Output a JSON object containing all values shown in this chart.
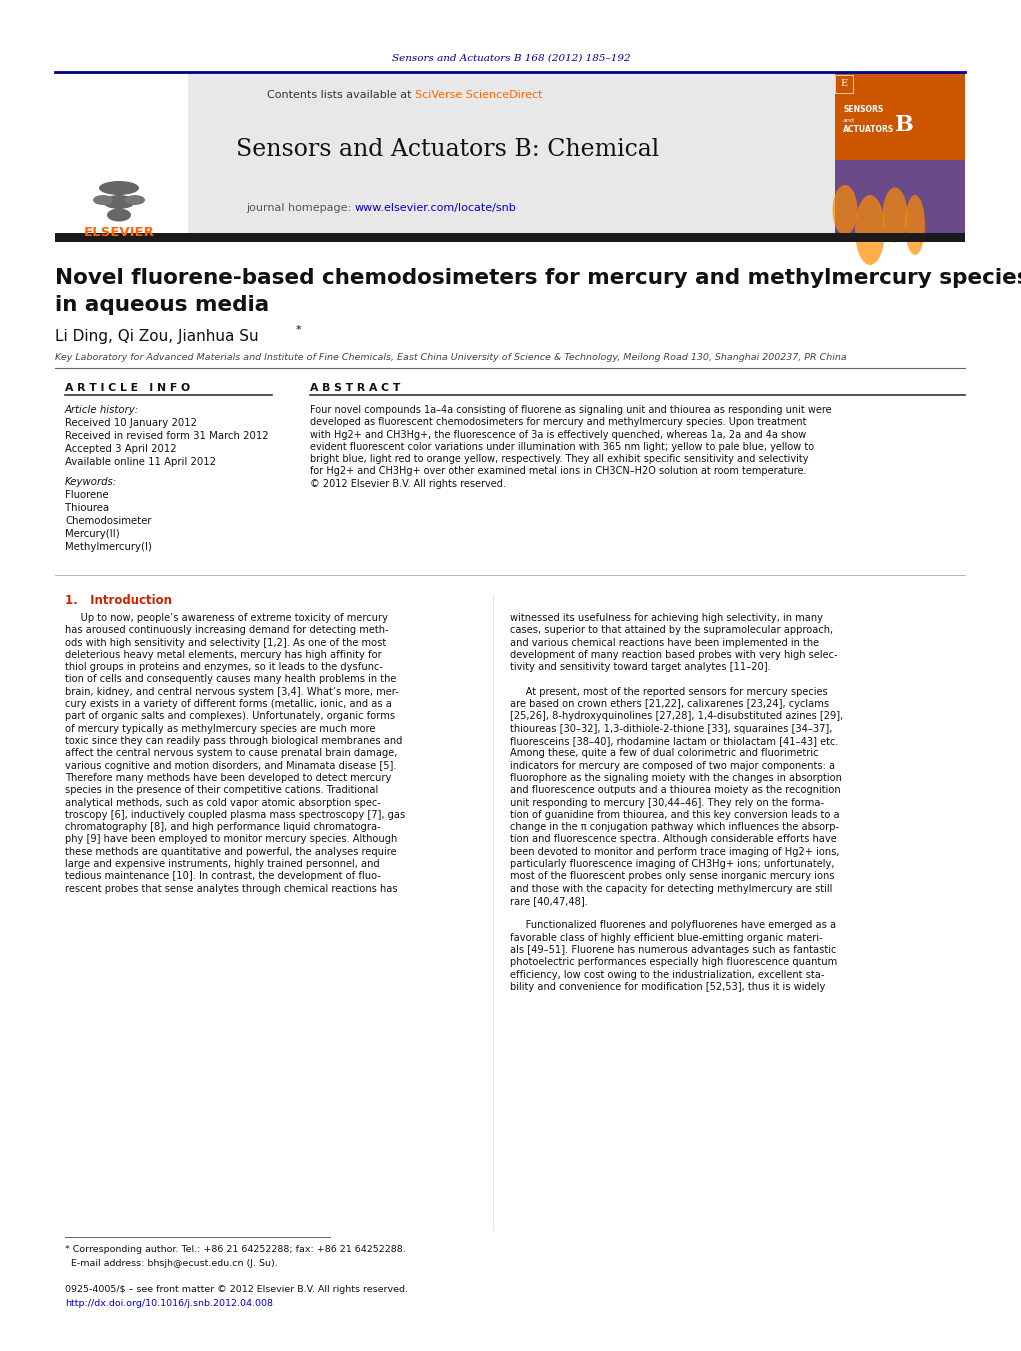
{
  "page_bg": "#ffffff",
  "top_citation": "Sensors and Actuators B 168 (2012) 185–192",
  "top_citation_color": "#00008B",
  "journal_name": "Sensors and Actuators B: Chemical",
  "journal_url": "www.elsevier.com/locate/snb",
  "contents_text": "Contents lists available at ",
  "sciverse_text": "SciVerse ScienceDirect",
  "journal_url_label": "journal homepage: ",
  "header_bg": "#e8e8e8",
  "dark_bar_color": "#1a1a1a",
  "article_title_line1": "Novel fluorene-based chemodosimeters for mercury and methylmercury species",
  "article_title_line2": "in aqueous media",
  "authors": "Li Ding, Qi Zou, Jianhua Su",
  "affiliation": "Key Laboratory for Advanced Materials and Institute of Fine Chemicals, East China University of Science & Technology, Meilong Road 130, Shanghai 200237, PR China",
  "article_info_header": "A R T I C L E   I N F O",
  "abstract_header": "A B S T R A C T",
  "article_history_label": "Article history:",
  "received_label": "Received 10 January 2012",
  "revised_label": "Received in revised form 31 March 2012",
  "accepted_label": "Accepted 3 April 2012",
  "online_label": "Available online 11 April 2012",
  "keywords_label": "Keywords:",
  "keywords": [
    "Fluorene",
    "Thiourea",
    "Chemodosimeter",
    "Mercury(II)",
    "Methylmercury(I)"
  ],
  "abstract_lines": [
    "Four novel compounds 1a–4a consisting of fluorene as signaling unit and thiourea as responding unit were",
    "developed as fluorescent chemodosimeters for mercury and methylmercury species. Upon treatment",
    "with Hg2+ and CH3Hg+, the fluorescence of 3a is effectively quenched, whereas 1a, 2a and 4a show",
    "evident fluorescent color variations under illumination with 365 nm light; yellow to pale blue, yellow to",
    "bright blue, light red to orange yellow, respectively. They all exhibit specific sensitivity and selectivity",
    "for Hg2+ and CH3Hg+ over other examined metal ions in CH3CN–H2O solution at room temperature.",
    "© 2012 Elsevier B.V. All rights reserved."
  ],
  "intro_header": "1.   Introduction",
  "col1_lines": [
    "     Up to now, people’s awareness of extreme toxicity of mercury",
    "has aroused continuously increasing demand for detecting meth-",
    "ods with high sensitivity and selectivity [1,2]. As one of the most",
    "deleterious heavy metal elements, mercury has high affinity for",
    "thiol groups in proteins and enzymes, so it leads to the dysfunc-",
    "tion of cells and consequently causes many health problems in the",
    "brain, kidney, and central nervous system [3,4]. What’s more, mer-",
    "cury exists in a variety of different forms (metallic, ionic, and as a",
    "part of organic salts and complexes). Unfortunately, organic forms",
    "of mercury typically as methylmercury species are much more",
    "toxic since they can readily pass through biological membranes and",
    "affect the central nervous system to cause prenatal brain damage,",
    "various cognitive and motion disorders, and Minamata disease [5].",
    "Therefore many methods have been developed to detect mercury",
    "species in the presence of their competitive cations. Traditional",
    "analytical methods, such as cold vapor atomic absorption spec-",
    "troscopy [6], inductively coupled plasma mass spectroscopy [7], gas",
    "chromatography [8], and high performance liquid chromatogra-",
    "phy [9] have been employed to monitor mercury species. Although",
    "these methods are quantitative and powerful, the analyses require",
    "large and expensive instruments, highly trained personnel, and",
    "tedious maintenance [10]. In contrast, the development of fluo-",
    "rescent probes that sense analytes through chemical reactions has"
  ],
  "col2_lines": [
    "witnessed its usefulness for achieving high selectivity, in many",
    "cases, superior to that attained by the supramolecular approach,",
    "and various chemical reactions have been implemented in the",
    "development of many reaction based probes with very high selec-",
    "tivity and sensitivity toward target analytes [11–20].",
    "",
    "     At present, most of the reported sensors for mercury species",
    "are based on crown ethers [21,22], calixarenes [23,24], cyclams",
    "[25,26], 8-hydroxyquinolines [27,28], 1,4-disubstituted azines [29],",
    "thioureas [30–32], 1,3-dithiole-2-thione [33], squaraines [34–37],",
    "fluoresceins [38–40], rhodamine lactam or thiolactam [41–43] etc.",
    "Among these, quite a few of dual colorimetric and fluorimetric",
    "indicators for mercury are composed of two major components: a",
    "fluorophore as the signaling moiety with the changes in absorption",
    "and fluorescence outputs and a thiourea moiety as the recognition",
    "unit responding to mercury [30,44–46]. They rely on the forma-",
    "tion of guanidine from thiourea, and this key conversion leads to a",
    "change in the π conjugation pathway which influences the absorp-",
    "tion and fluorescence spectra. Although considerable efforts have",
    "been devoted to monitor and perform trace imaging of Hg2+ ions,",
    "particularly fluorescence imaging of CH3Hg+ ions; unfortunately,",
    "most of the fluorescent probes only sense inorganic mercury ions",
    "and those with the capacity for detecting methylmercury are still",
    "rare [40,47,48].",
    "",
    "     Functionalized fluorenes and polyfluorenes have emerged as a",
    "favorable class of highly efficient blue-emitting organic materi-",
    "als [49–51]. Fluorene has numerous advantages such as fantastic",
    "photoelectric performances especially high fluorescence quantum",
    "efficiency, low cost owing to the industrialization, excellent sta-",
    "bility and convenience for modification [52,53], thus it is widely"
  ],
  "footnote_line1": "* Corresponding author. Tel.: +86 21 64252288; fax: +86 21 64252288.",
  "footnote_line2": "  E-mail address: bhsjh@ecust.edu.cn (J. Su).",
  "footer_line1": "0925-4005/$ – see front matter © 2012 Elsevier B.V. All rights reserved.",
  "footer_line2": "http://dx.doi.org/10.1016/j.snb.2012.04.008",
  "link_color": "#FF6600",
  "url_color": "#0000CD",
  "dark_navy": "#00008B",
  "red_header": "#CC2200",
  "text_color": "#111111",
  "gray_text": "#555555"
}
